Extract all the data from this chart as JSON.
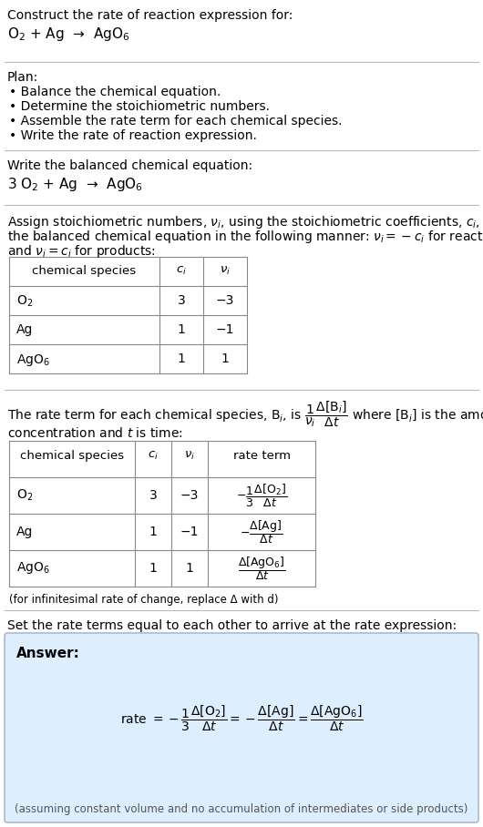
{
  "bg_color": "#ffffff",
  "text_color": "#000000",
  "section1_title": "Construct the rate of reaction expression for:",
  "section1_reaction": "O$_2$ + Ag  →  AgO$_6$",
  "plan_title": "Plan:",
  "plan_items": [
    "• Balance the chemical equation.",
    "• Determine the stoichiometric numbers.",
    "• Assemble the rate term for each chemical species.",
    "• Write the rate of reaction expression."
  ],
  "balanced_title": "Write the balanced chemical equation:",
  "balanced_eq": "3 O$_2$ + Ag  →  AgO$_6$",
  "assign_text1": "Assign stoichiometric numbers, $\\nu_i$, using the stoichiometric coefficients, $c_i$, from",
  "assign_text2": "the balanced chemical equation in the following manner: $\\nu_i = -c_i$ for reactants",
  "assign_text3": "and $\\nu_i = c_i$ for products:",
  "table1_headers": [
    "chemical species",
    "$c_i$",
    "$\\nu_i$"
  ],
  "table1_data": [
    [
      "O$_2$",
      "3",
      "−3"
    ],
    [
      "Ag",
      "1",
      "−1"
    ],
    [
      "AgO$_6$",
      "1",
      "1"
    ]
  ],
  "rate_text1": "The rate term for each chemical species, B$_i$, is $\\dfrac{1}{\\nu_i}\\dfrac{\\Delta[\\mathrm{B}_i]}{\\Delta t}$ where [B$_i$] is the amount",
  "rate_text2": "concentration and $t$ is time:",
  "table2_headers": [
    "chemical species",
    "$c_i$",
    "$\\nu_i$",
    "rate term"
  ],
  "table2_data": [
    [
      "O$_2$",
      "3",
      "−3",
      "$-\\dfrac{1}{3}\\dfrac{\\Delta[\\mathrm{O_2}]}{\\Delta t}$"
    ],
    [
      "Ag",
      "1",
      "−1",
      "$-\\dfrac{\\Delta[\\mathrm{Ag}]}{\\Delta t}$"
    ],
    [
      "AgO$_6$",
      "1",
      "1",
      "$\\dfrac{\\Delta[\\mathrm{AgO_6}]}{\\Delta t}$"
    ]
  ],
  "infinitesimal_note": "(for infinitesimal rate of change, replace Δ with d)",
  "set_equal_text": "Set the rate terms equal to each other to arrive at the rate expression:",
  "answer_bg": "#ddeeff",
  "answer_border": "#aabbcc",
  "answer_label": "Answer:",
  "answer_formula": "rate $= -\\dfrac{1}{3}\\dfrac{\\Delta[\\mathrm{O_2}]}{\\Delta t} = -\\dfrac{\\Delta[\\mathrm{Ag}]}{\\Delta t} = \\dfrac{\\Delta[\\mathrm{AgO_6}]}{\\Delta t}$",
  "answer_note": "(assuming constant volume and no accumulation of intermediates or side products)"
}
